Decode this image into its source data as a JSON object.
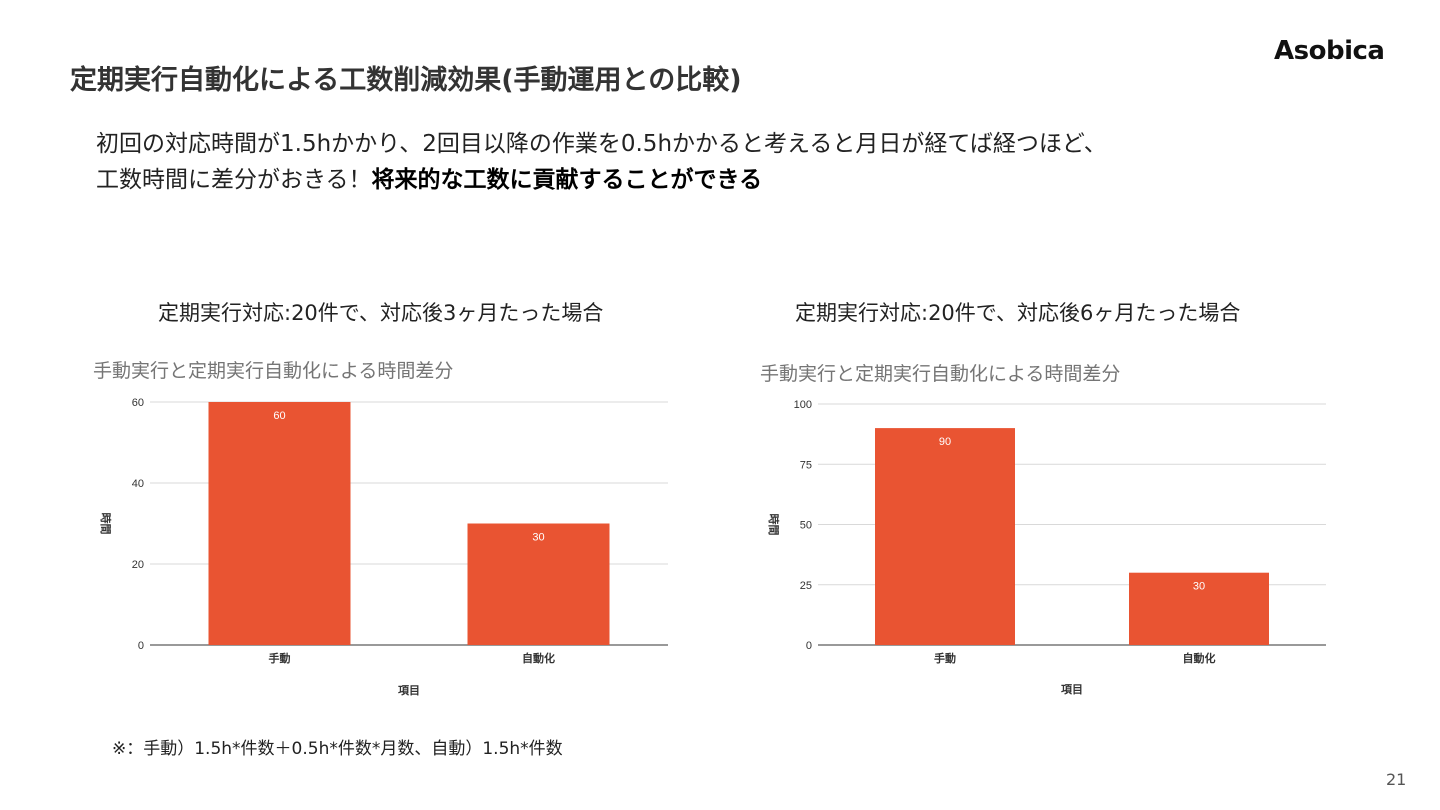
{
  "slide": {
    "title": "定期実行自動化による工数削減効果(手動運用との比較)",
    "logo": "Asobica",
    "lead_line1": "初回の対応時間が1.5hかかり、2回目以降の作業を0.5hかかると考えると月日が経てば経つほど、",
    "lead_line2_normal": "工数時間に差分がおきる！",
    "lead_line2_bold": "将来的な工数に貢献することができる",
    "footnote": "※：手動）1.5h*件数＋0.5h*件数*月数、自動）1.5h*件数",
    "page_number": "21"
  },
  "chart_headings": [
    "定期実行対応:20件で、対応後3ヶ月たった場合",
    "定期実行対応:20件で、対応後6ヶ月たった場合"
  ],
  "colors": {
    "bar": "#e95432",
    "grid": "#d9d9d9",
    "axis": "#333333",
    "chart_title": "#757575"
  },
  "chart_data": [
    {
      "type": "bar",
      "title": "手動実行と定期実行自動化による時間差分",
      "categories": [
        "手動",
        "自動化"
      ],
      "values": [
        60,
        30
      ],
      "xlabel": "項目",
      "ylabel": "時間",
      "ylim": [
        0,
        60
      ],
      "yticks": [
        0,
        20,
        40,
        60
      ],
      "grid": true,
      "legend": "none"
    },
    {
      "type": "bar",
      "title": "手動実行と定期実行自動化による時間差分",
      "categories": [
        "手動",
        "自動化"
      ],
      "values": [
        90,
        30
      ],
      "xlabel": "項目",
      "ylabel": "時間",
      "ylim": [
        0,
        100
      ],
      "yticks": [
        0,
        25,
        50,
        75,
        100
      ],
      "grid": true,
      "legend": "none"
    }
  ]
}
